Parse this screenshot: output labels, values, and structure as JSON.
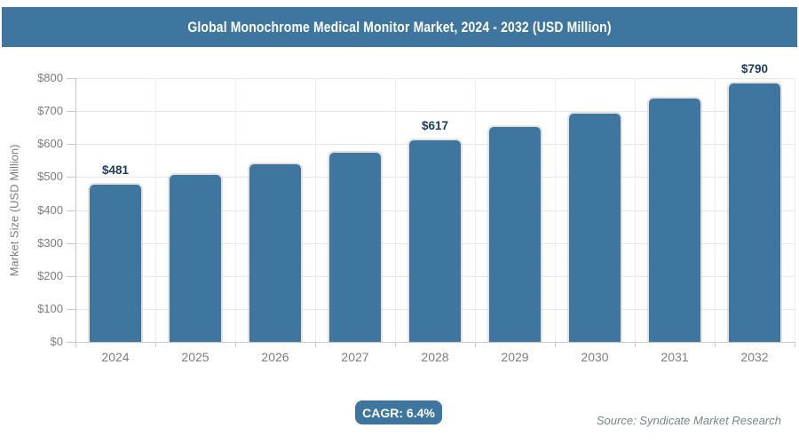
{
  "header": {
    "title": "Global Monochrome Medical Monitor Market, 2024 - 2032 (USD Million)"
  },
  "footer": {
    "cagr_label": "CAGR: 6.4%",
    "source": "Source: Syndicate Market Research"
  },
  "colors": {
    "accent": "#3e76a0",
    "bar": "#3e76a0",
    "data_label": "#1e3d5c",
    "axis_text": "#7d7d7d",
    "gridline": "#e8e8e8",
    "axis_line": "#c9c9c9",
    "source_text": "#75868d",
    "title_text": "#ffffff"
  },
  "chart_data": {
    "type": "bar",
    "title": "Global Monochrome Medical Monitor Market, 2024 - 2032 (USD Million)",
    "categories": [
      "2024",
      "2025",
      "2026",
      "2027",
      "2028",
      "2029",
      "2030",
      "2031",
      "2032"
    ],
    "values": [
      481,
      512,
      545,
      579,
      617,
      656,
      698,
      743,
      790
    ],
    "labeled_points": {
      "2024": "$481",
      "2028": "$617",
      "2032": "$790"
    },
    "xlabel": "",
    "ylabel": "Market Size (USD Million)",
    "ylim": [
      0,
      800
    ],
    "ytick_step": 100,
    "ytick_prefix": "$",
    "ytick_labels": [
      "$0",
      "$100",
      "$200",
      "$300",
      "$400",
      "$500",
      "$600",
      "$700",
      "$800"
    ],
    "grid": true,
    "legend": "none",
    "cagr": "6.4%"
  }
}
